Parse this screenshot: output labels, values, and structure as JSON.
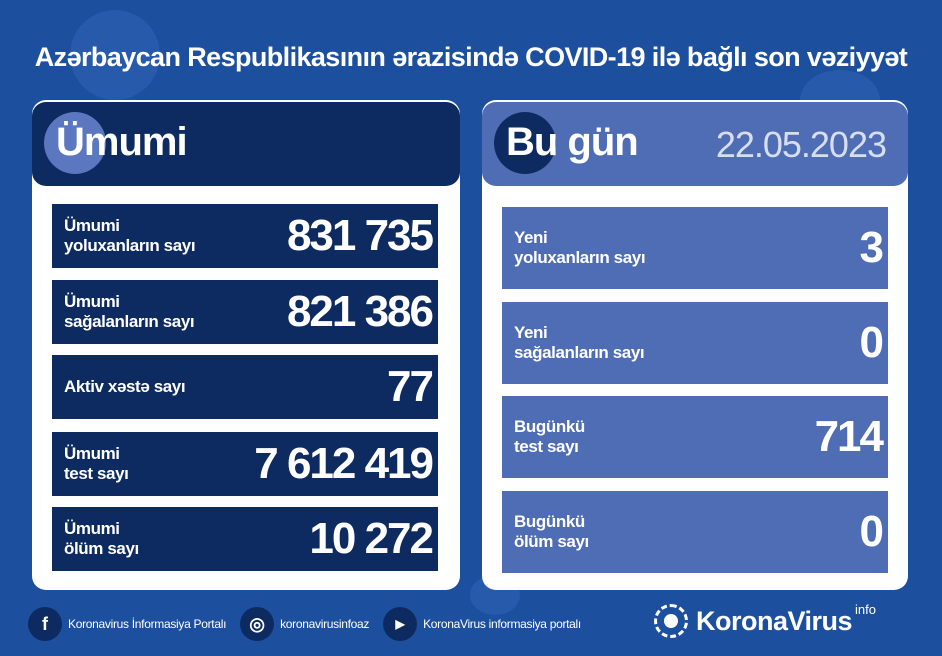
{
  "title": "Azərbaycan Respublikasının ərazisində COVID-19 ilə bağlı son vəziyyət",
  "total": {
    "heading": "Ümumi",
    "rows": [
      {
        "label1": "Ümumi",
        "label2": "yoluxanların sayı",
        "value": "831 735"
      },
      {
        "label1": "Ümumi",
        "label2": "sağalanların sayı",
        "value": "821 386"
      },
      {
        "label1": "Aktiv xəstə sayı",
        "label2": "",
        "value": "77"
      },
      {
        "label1": "Ümumi",
        "label2": "test sayı",
        "value": "7 612 419"
      },
      {
        "label1": "Ümumi",
        "label2": "ölüm sayı",
        "value": "10 272"
      }
    ]
  },
  "today": {
    "heading": "Bu gün",
    "date": "22.05.2023",
    "rows": [
      {
        "label1": "Yeni",
        "label2": "yoluxanların sayı",
        "value": "3"
      },
      {
        "label1": "Yeni",
        "label2": "sağalanların sayı",
        "value": "0"
      },
      {
        "label1": "Bugünkü",
        "label2": "test sayı",
        "value": "714"
      },
      {
        "label1": "Bugünkü",
        "label2": "ölüm sayı",
        "value": "0"
      }
    ]
  },
  "footer": {
    "facebook": "Koronavirus İnformasiya Portalı",
    "instagram": "koronavirusinfoaz",
    "youtube": "KoronaVirus informasiya portalı"
  },
  "logo": {
    "name": "KoronaVirus",
    "sup": "info"
  },
  "colors": {
    "background": "#1d4f9f",
    "navy": "#0d2b60",
    "accent": "#4f6db5"
  }
}
